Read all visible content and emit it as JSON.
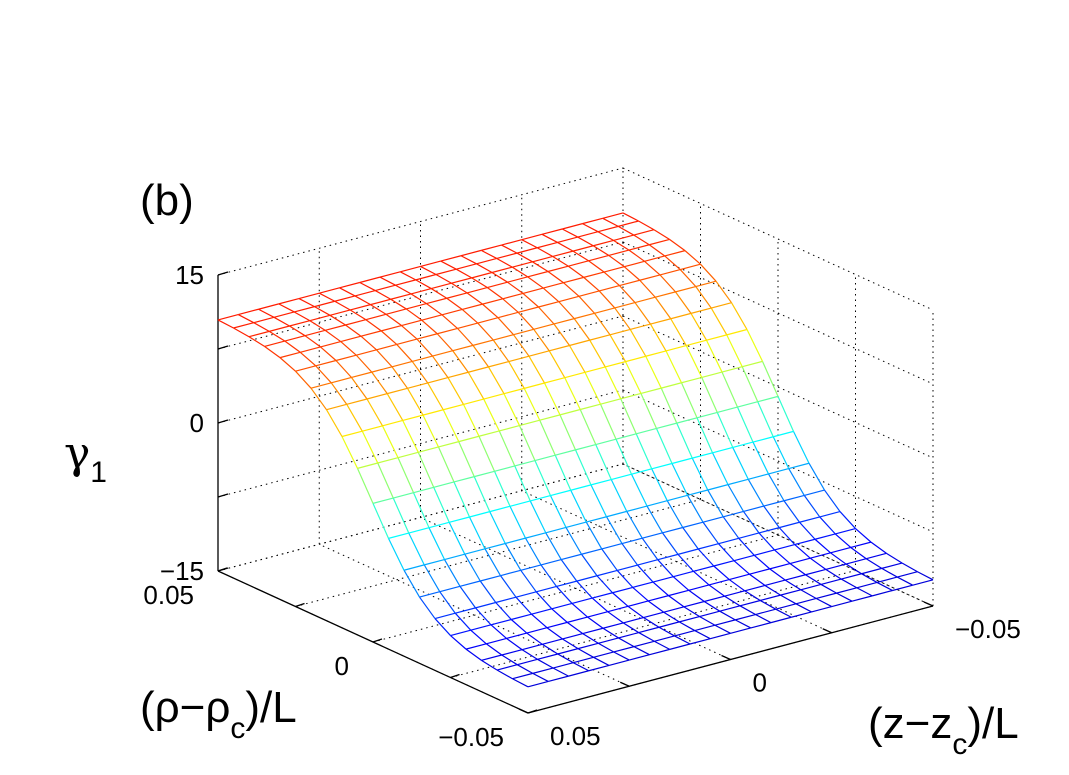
{
  "chart_data": {
    "type": "surface",
    "panel_label": "(b)",
    "z_axis": {
      "label_main": "γ",
      "label_sub": "1",
      "range": [
        -15,
        15
      ],
      "ticks": [
        15,
        0,
        -15
      ],
      "tick_labels": [
        "15",
        "0",
        "−15"
      ]
    },
    "rho_axis": {
      "label_pre": "(ρ−ρ",
      "label_sub": "c",
      "label_post": ")/L",
      "range": [
        -0.05,
        0.05
      ],
      "ticks": [
        0.05,
        0,
        -0.05
      ],
      "tick_labels": [
        "0.05",
        "0",
        "−0.05"
      ]
    },
    "z_pos_axis": {
      "label_pre": "(z−z",
      "label_sub": "c",
      "label_post": ")/L",
      "range": [
        -0.05,
        0.05
      ],
      "ticks": [
        0.05,
        0,
        -0.05
      ],
      "tick_labels": [
        "0.05",
        "0",
        "−0.05"
      ]
    },
    "surface": {
      "grid_points": 21,
      "plateau_high": 10.6,
      "plateau_low": -12.5,
      "colormap": "jet",
      "grid": "on"
    }
  }
}
